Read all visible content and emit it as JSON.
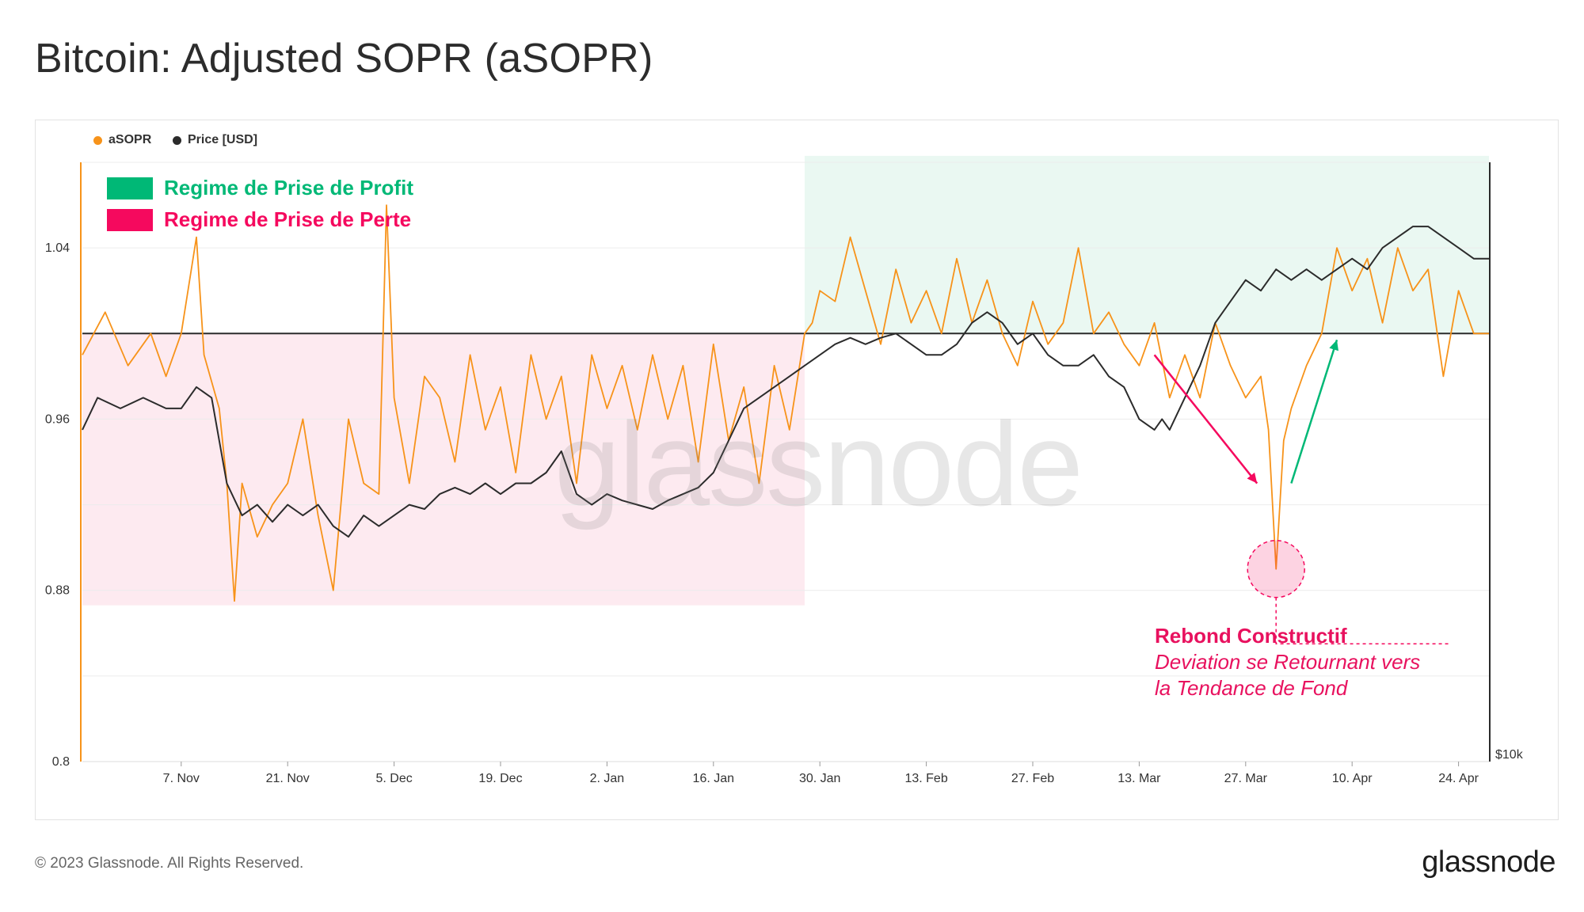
{
  "title": "Bitcoin: Adjusted SOPR (aSOPR)",
  "legend": [
    {
      "label": "aSOPR",
      "color": "#f7931a"
    },
    {
      "label": "Price [USD]",
      "color": "#2b2b2b"
    }
  ],
  "regimes": {
    "profit": {
      "label": "Regime de Prise de Profit",
      "color": "#00b876",
      "fill": "#eaf8f2"
    },
    "loss": {
      "label": "Regime de Prise de Perte",
      "color": "#f5095e",
      "fill": "#fdeaf0"
    }
  },
  "annotation": {
    "title": "Rebond Constructif",
    "line1": "Deviation se Retournant vers",
    "line2": "la Tendance de Fond"
  },
  "watermark": "glassnode",
  "footer": {
    "copyright": "© 2023 Glassnode. All Rights Reserved.",
    "brand": "glassnode"
  },
  "chart_data": {
    "type": "line",
    "x_ticks": [
      "7. Nov",
      "21. Nov",
      "5. Dec",
      "19. Dec",
      "2. Jan",
      "16. Jan",
      "30. Jan",
      "13. Feb",
      "27. Feb",
      "13. Mar",
      "27. Mar",
      "10. Apr",
      "24. Apr"
    ],
    "y_left": {
      "ticks": [
        "1.04",
        "0.96",
        "0.88",
        "0.8"
      ],
      "range": [
        0.8,
        1.08
      ],
      "baseline": 1.0
    },
    "y_right": {
      "ticks": [
        "$10k"
      ]
    },
    "x_range_days": [
      -13,
      172
    ],
    "series": [
      {
        "name": "aSOPR",
        "color": "#f7931a",
        "points": [
          [
            -13,
            0.99
          ],
          [
            -10,
            1.01
          ],
          [
            -7,
            0.985
          ],
          [
            -4,
            1.0
          ],
          [
            -2,
            0.98
          ],
          [
            0,
            1.0
          ],
          [
            2,
            1.045
          ],
          [
            3,
            0.99
          ],
          [
            5,
            0.965
          ],
          [
            6,
            0.93
          ],
          [
            7,
            0.875
          ],
          [
            8,
            0.93
          ],
          [
            10,
            0.905
          ],
          [
            12,
            0.92
          ],
          [
            14,
            0.93
          ],
          [
            16,
            0.96
          ],
          [
            18,
            0.915
          ],
          [
            20,
            0.88
          ],
          [
            22,
            0.96
          ],
          [
            24,
            0.93
          ],
          [
            26,
            0.925
          ],
          [
            27,
            1.06
          ],
          [
            28,
            0.97
          ],
          [
            30,
            0.93
          ],
          [
            32,
            0.98
          ],
          [
            34,
            0.97
          ],
          [
            36,
            0.94
          ],
          [
            38,
            0.99
          ],
          [
            40,
            0.955
          ],
          [
            42,
            0.975
          ],
          [
            44,
            0.935
          ],
          [
            46,
            0.99
          ],
          [
            48,
            0.96
          ],
          [
            50,
            0.98
          ],
          [
            52,
            0.93
          ],
          [
            54,
            0.99
          ],
          [
            56,
            0.965
          ],
          [
            58,
            0.985
          ],
          [
            60,
            0.955
          ],
          [
            62,
            0.99
          ],
          [
            64,
            0.96
          ],
          [
            66,
            0.985
          ],
          [
            68,
            0.94
          ],
          [
            70,
            0.995
          ],
          [
            72,
            0.95
          ],
          [
            74,
            0.975
          ],
          [
            76,
            0.93
          ],
          [
            78,
            0.985
          ],
          [
            80,
            0.955
          ],
          [
            82,
            1.0
          ],
          [
            83,
            1.005
          ],
          [
            84,
            1.02
          ],
          [
            86,
            1.015
          ],
          [
            88,
            1.045
          ],
          [
            90,
            1.02
          ],
          [
            92,
            0.995
          ],
          [
            94,
            1.03
          ],
          [
            96,
            1.005
          ],
          [
            98,
            1.02
          ],
          [
            100,
            1.0
          ],
          [
            102,
            1.035
          ],
          [
            104,
            1.005
          ],
          [
            106,
            1.025
          ],
          [
            108,
            1.0
          ],
          [
            110,
            0.985
          ],
          [
            112,
            1.015
          ],
          [
            114,
            0.995
          ],
          [
            116,
            1.005
          ],
          [
            118,
            1.04
          ],
          [
            120,
            1.0
          ],
          [
            122,
            1.01
          ],
          [
            124,
            0.995
          ],
          [
            126,
            0.985
          ],
          [
            128,
            1.005
          ],
          [
            130,
            0.97
          ],
          [
            132,
            0.99
          ],
          [
            134,
            0.97
          ],
          [
            136,
            1.005
          ],
          [
            138,
            0.985
          ],
          [
            140,
            0.97
          ],
          [
            142,
            0.98
          ],
          [
            143,
            0.955
          ],
          [
            144,
            0.89
          ],
          [
            145,
            0.95
          ],
          [
            146,
            0.965
          ],
          [
            148,
            0.985
          ],
          [
            150,
            1.0
          ],
          [
            152,
            1.04
          ],
          [
            154,
            1.02
          ],
          [
            156,
            1.035
          ],
          [
            158,
            1.005
          ],
          [
            160,
            1.04
          ],
          [
            162,
            1.02
          ],
          [
            164,
            1.03
          ],
          [
            166,
            0.98
          ],
          [
            168,
            1.02
          ],
          [
            170,
            1.0
          ],
          [
            172,
            1.0
          ]
        ]
      },
      {
        "name": "Price [USD]",
        "color": "#2b2b2b",
        "points": [
          [
            -13,
            0.955
          ],
          [
            -11,
            0.97
          ],
          [
            -8,
            0.965
          ],
          [
            -5,
            0.97
          ],
          [
            -2,
            0.965
          ],
          [
            0,
            0.965
          ],
          [
            2,
            0.975
          ],
          [
            4,
            0.97
          ],
          [
            6,
            0.93
          ],
          [
            8,
            0.915
          ],
          [
            10,
            0.92
          ],
          [
            12,
            0.912
          ],
          [
            14,
            0.92
          ],
          [
            16,
            0.915
          ],
          [
            18,
            0.92
          ],
          [
            20,
            0.91
          ],
          [
            22,
            0.905
          ],
          [
            24,
            0.915
          ],
          [
            26,
            0.91
          ],
          [
            28,
            0.915
          ],
          [
            30,
            0.92
          ],
          [
            32,
            0.918
          ],
          [
            34,
            0.925
          ],
          [
            36,
            0.928
          ],
          [
            38,
            0.925
          ],
          [
            40,
            0.93
          ],
          [
            42,
            0.925
          ],
          [
            44,
            0.93
          ],
          [
            46,
            0.93
          ],
          [
            48,
            0.935
          ],
          [
            50,
            0.945
          ],
          [
            52,
            0.925
          ],
          [
            54,
            0.92
          ],
          [
            56,
            0.925
          ],
          [
            58,
            0.922
          ],
          [
            60,
            0.92
          ],
          [
            62,
            0.918
          ],
          [
            64,
            0.922
          ],
          [
            66,
            0.925
          ],
          [
            68,
            0.928
          ],
          [
            70,
            0.935
          ],
          [
            72,
            0.95
          ],
          [
            74,
            0.965
          ],
          [
            76,
            0.97
          ],
          [
            78,
            0.975
          ],
          [
            80,
            0.98
          ],
          [
            82,
            0.985
          ],
          [
            84,
            0.99
          ],
          [
            86,
            0.995
          ],
          [
            88,
            0.998
          ],
          [
            90,
            0.995
          ],
          [
            92,
            0.998
          ],
          [
            94,
            1.0
          ],
          [
            96,
            0.995
          ],
          [
            98,
            0.99
          ],
          [
            100,
            0.99
          ],
          [
            102,
            0.995
          ],
          [
            104,
            1.005
          ],
          [
            106,
            1.01
          ],
          [
            108,
            1.005
          ],
          [
            110,
            0.995
          ],
          [
            112,
            1.0
          ],
          [
            114,
            0.99
          ],
          [
            116,
            0.985
          ],
          [
            118,
            0.985
          ],
          [
            120,
            0.99
          ],
          [
            122,
            0.98
          ],
          [
            124,
            0.975
          ],
          [
            126,
            0.96
          ],
          [
            128,
            0.955
          ],
          [
            129,
            0.96
          ],
          [
            130,
            0.955
          ],
          [
            132,
            0.97
          ],
          [
            134,
            0.985
          ],
          [
            136,
            1.005
          ],
          [
            138,
            1.015
          ],
          [
            140,
            1.025
          ],
          [
            142,
            1.02
          ],
          [
            144,
            1.03
          ],
          [
            146,
            1.025
          ],
          [
            148,
            1.03
          ],
          [
            150,
            1.025
          ],
          [
            152,
            1.03
          ],
          [
            154,
            1.035
          ],
          [
            156,
            1.03
          ],
          [
            158,
            1.04
          ],
          [
            160,
            1.045
          ],
          [
            162,
            1.05
          ],
          [
            164,
            1.05
          ],
          [
            166,
            1.045
          ],
          [
            168,
            1.04
          ],
          [
            170,
            1.035
          ],
          [
            172,
            1.035
          ]
        ]
      }
    ]
  }
}
